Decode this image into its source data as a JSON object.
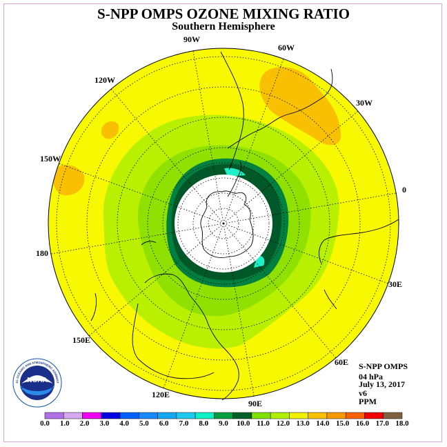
{
  "title": "S-NPP OMPS OZONE MIXING RATIO",
  "subtitle": "Southern Hemisphere",
  "longitude_labels": [
    "90W",
    "60W",
    "30W",
    "0",
    "30E",
    "60E",
    "90E",
    "120E",
    "150E",
    "180",
    "150W",
    "120W"
  ],
  "info": {
    "instrument": "S-NPP OMPS",
    "level": "04 hPa",
    "date": "July 13, 2017",
    "version": "v6",
    "units": "PPM"
  },
  "logo": {
    "text": "NOAA",
    "ring_text": "NATIONAL OCEANIC AND ATMOSPHERIC ADMINISTRATION",
    "ring_text_bottom": "U.S. DEPARTMENT OF COMMERCE"
  },
  "colorbar": {
    "labels": [
      "0.0",
      "1.0",
      "2.0",
      "3.0",
      "4.0",
      "5.0",
      "6.0",
      "7.0",
      "8.0",
      "9.0",
      "10.0",
      "11.0",
      "12.0",
      "13.0",
      "14.0",
      "15.0",
      "16.0",
      "17.0",
      "18.0"
    ],
    "colors": [
      "#b070e8",
      "#d8a8f0",
      "#f000f0",
      "#0000e0",
      "#0060ff",
      "#1888ff",
      "#10a8f0",
      "#20c8f0",
      "#10f0c8",
      "#00a040",
      "#006028",
      "#80e000",
      "#b0f000",
      "#f0f000",
      "#f8c000",
      "#f89800",
      "#f86000",
      "#f00000",
      "#806040"
    ]
  },
  "colors": {
    "background_field": "#f8f800",
    "light_green": "#b8f000",
    "mid_green": "#90e000",
    "dark_green": "#008040",
    "darkest_green": "#005828",
    "cyan": "#20f0c8",
    "orange": "#f8c000"
  }
}
